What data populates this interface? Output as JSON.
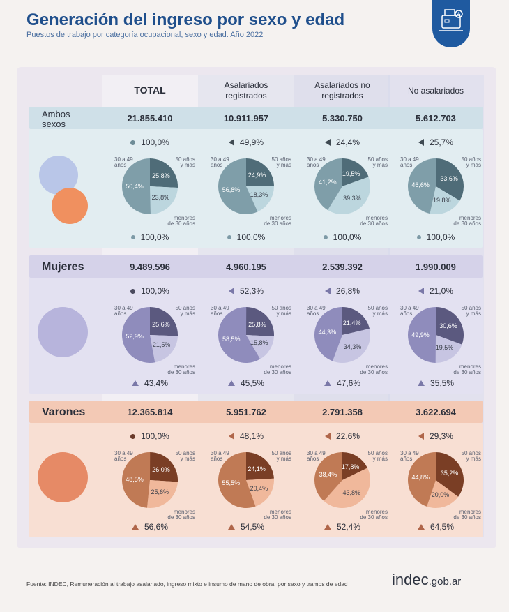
{
  "header": {
    "title": "Generación del ingreso por sexo y edad",
    "subtitle": "Puestos de trabajo por categoría ocupacional, sexo y edad. Año 2022"
  },
  "columns": [
    "TOTAL",
    "Asalariados\nregistrados",
    "Asalariados no\nregistrados",
    "No asalariados"
  ],
  "pie_labels": {
    "age_30_49": "30 a 49\naños",
    "age_50_plus": "50 años\ny más",
    "age_under_30": "menores\nde 30 años"
  },
  "colors": {
    "ambos": "#5b7f8d",
    "mujeres": "#6d6b96",
    "varones": "#a9552f",
    "title": "#1f4f8c"
  },
  "chart_data": [
    {
      "type": "pie",
      "group": "Ambos sexos",
      "label": "Ambos\nsexos",
      "totals": [
        "21.855.410",
        "10.911.957",
        "5.330.750",
        "5.612.703"
      ],
      "share_top": [
        "100,0%",
        "49,9%",
        "24,4%",
        "25,7%"
      ],
      "share_bottom": [
        "100,0%",
        "100,0%",
        "100,0%",
        "100,0%"
      ],
      "pies": [
        {
          "p50": 25.8,
          "pu30": 23.8,
          "p30": 50.4,
          "l50": "25,8%",
          "lu30": "23,8%",
          "l30": "50,4%"
        },
        {
          "p50": 24.9,
          "pu30": 18.3,
          "p30": 56.8,
          "l50": "24,9%",
          "lu30": "18,3%",
          "l30": "56,8%"
        },
        {
          "p50": 19.5,
          "pu30": 39.3,
          "p30": 41.2,
          "l50": "19,5%",
          "lu30": "39,3%",
          "l30": "41,2%"
        },
        {
          "p50": 33.6,
          "pu30": 19.8,
          "p30": 46.6,
          "l50": "33,6%",
          "lu30": "19,8%",
          "l30": "46,6%"
        }
      ]
    },
    {
      "type": "pie",
      "group": "Mujeres",
      "label": "Mujeres",
      "totals": [
        "9.489.596",
        "4.960.195",
        "2.539.392",
        "1.990.009"
      ],
      "share_top": [
        "100,0%",
        "52,3%",
        "26,8%",
        "21,0%"
      ],
      "share_bottom": [
        "43,4%",
        "45,5%",
        "47,6%",
        "35,5%"
      ],
      "pies": [
        {
          "p50": 25.6,
          "pu30": 21.5,
          "p30": 52.9,
          "l50": "25,6%",
          "lu30": "21,5%",
          "l30": "52,9%"
        },
        {
          "p50": 25.8,
          "pu30": 15.8,
          "p30": 58.5,
          "l50": "25,8%",
          "lu30": "15,8%",
          "l30": "58,5%"
        },
        {
          "p50": 21.4,
          "pu30": 34.3,
          "p30": 44.3,
          "l50": "21,4%",
          "lu30": "34,3%",
          "l30": "44,3%"
        },
        {
          "p50": 30.6,
          "pu30": 19.5,
          "p30": 49.9,
          "l50": "30,6%",
          "lu30": "19,5%",
          "l30": "49,9%"
        }
      ]
    },
    {
      "type": "pie",
      "group": "Varones",
      "label": "Varones",
      "totals": [
        "12.365.814",
        "5.951.762",
        "2.791.358",
        "3.622.694"
      ],
      "share_top": [
        "100,0%",
        "48,1%",
        "22,6%",
        "29,3%"
      ],
      "share_bottom": [
        "56,6%",
        "54,5%",
        "52,4%",
        "64,5%"
      ],
      "pies": [
        {
          "p50": 26.0,
          "pu30": 25.6,
          "p30": 48.5,
          "l50": "26,0%",
          "lu30": "25,6%",
          "l30": "48,5%"
        },
        {
          "p50": 24.1,
          "pu30": 20.4,
          "p30": 55.5,
          "l50": "24,1%",
          "lu30": "20,4%",
          "l30": "55,5%"
        },
        {
          "p50": 17.8,
          "pu30": 43.8,
          "p30": 38.4,
          "l50": "17,8%",
          "lu30": "43,8%",
          "l30": "38,4%"
        },
        {
          "p50": 35.2,
          "pu30": 20.0,
          "p30": 44.8,
          "l50": "35,2%",
          "lu30": "20,0%",
          "l30": "44,8%"
        }
      ]
    }
  ],
  "footer": {
    "source": "Fuente: INDEC, Remuneración al trabajo asalariado, ingreso mixto e insumo de mano de obra, por sexo y tramos de edad",
    "logo_main": "indec",
    "logo_suffix": ".gob.ar"
  }
}
